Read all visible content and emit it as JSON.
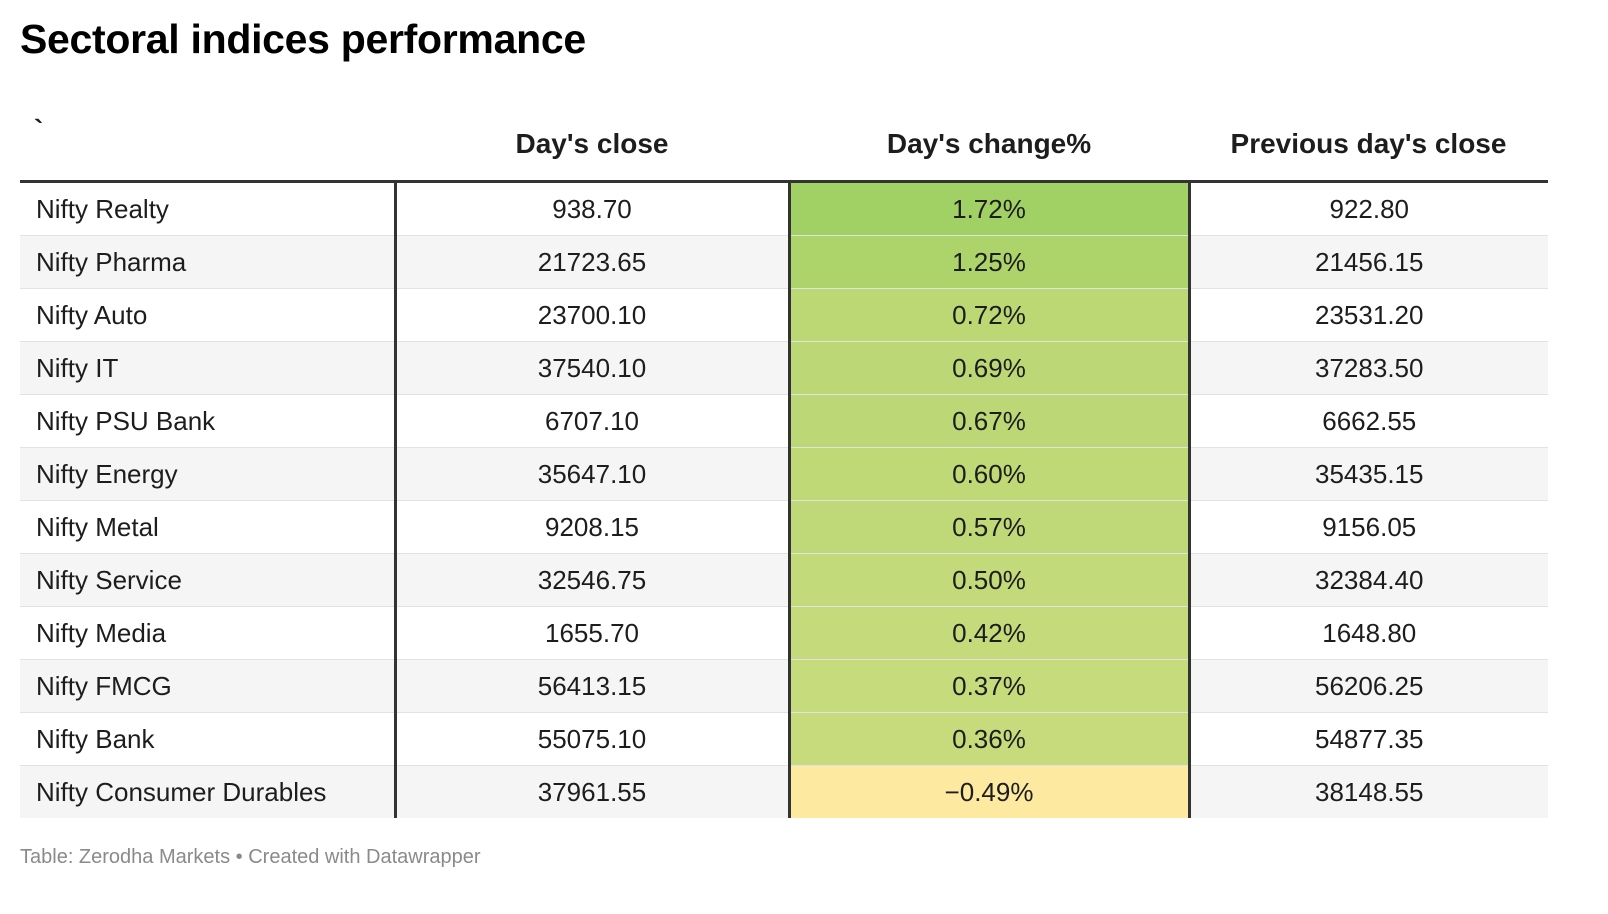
{
  "title": "Sectoral indices performance",
  "footer": "Table: Zerodha Markets • Created with Datawrapper",
  "colors": {
    "heat_high": "#a1d164",
    "heat_low": "#fde9a0",
    "grid_dark": "#333333"
  },
  "chart_data": {
    "type": "table",
    "columns": [
      "`",
      "Day's close",
      "Day's change%",
      "Previous day's close"
    ],
    "rows": [
      {
        "name": "Nifty Realty",
        "close": "938.70",
        "change": "1.72%",
        "change_value": 1.72,
        "prev": "922.80"
      },
      {
        "name": "Nifty Pharma",
        "close": "21723.65",
        "change": "1.25%",
        "change_value": 1.25,
        "prev": "21456.15"
      },
      {
        "name": "Nifty Auto",
        "close": "23700.10",
        "change": "0.72%",
        "change_value": 0.72,
        "prev": "23531.20"
      },
      {
        "name": "Nifty IT",
        "close": "37540.10",
        "change": "0.69%",
        "change_value": 0.69,
        "prev": "37283.50"
      },
      {
        "name": "Nifty PSU Bank",
        "close": "6707.10",
        "change": "0.67%",
        "change_value": 0.67,
        "prev": "6662.55"
      },
      {
        "name": "Nifty Energy",
        "close": "35647.10",
        "change": "0.60%",
        "change_value": 0.6,
        "prev": "35435.15"
      },
      {
        "name": "Nifty Metal",
        "close": "9208.15",
        "change": "0.57%",
        "change_value": 0.57,
        "prev": "9156.05"
      },
      {
        "name": "Nifty Service",
        "close": "32546.75",
        "change": "0.50%",
        "change_value": 0.5,
        "prev": "32384.40"
      },
      {
        "name": "Nifty Media",
        "close": "1655.70",
        "change": "0.42%",
        "change_value": 0.42,
        "prev": "1648.80"
      },
      {
        "name": "Nifty FMCG",
        "close": "56413.15",
        "change": "0.37%",
        "change_value": 0.37,
        "prev": "56206.25"
      },
      {
        "name": "Nifty Bank",
        "close": "55075.10",
        "change": "0.36%",
        "change_value": 0.36,
        "prev": "54877.35"
      },
      {
        "name": "Nifty Consumer Durables",
        "close": "37961.55",
        "change": "−0.49%",
        "change_value": -0.49,
        "prev": "38148.55"
      }
    ]
  }
}
